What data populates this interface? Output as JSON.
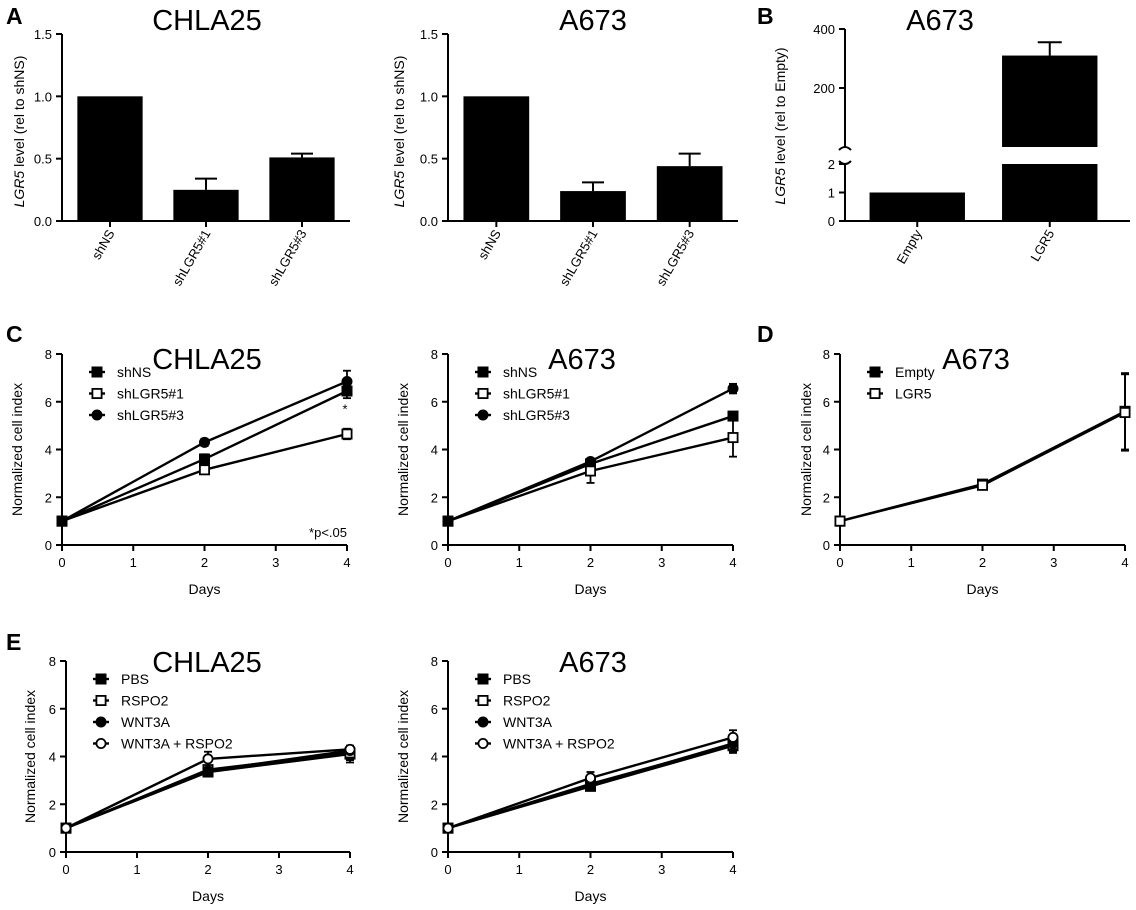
{
  "panel_labels": {
    "A": "A",
    "B": "B",
    "C": "C",
    "D": "D",
    "E": "E"
  },
  "chart_data": [
    {
      "id": "A1",
      "type": "bar",
      "title": "CHLA25",
      "ylabel_gene": "LGR5",
      "ylabel_rest": " level (rel to shNS)",
      "xlabel": "",
      "categories": [
        "shNS",
        "shLGR5#1",
        "shLGR5#3"
      ],
      "values": [
        1.0,
        0.25,
        0.51
      ],
      "errors": [
        0,
        0.09,
        0.03
      ],
      "ylim": [
        0,
        1.5
      ],
      "yticks": [
        "0.0",
        "0.5",
        "1.0",
        "1.5"
      ]
    },
    {
      "id": "A2",
      "type": "bar",
      "title": "A673",
      "ylabel_gene": "LGR5",
      "ylabel_rest": " level (rel  to shNS)",
      "xlabel": "",
      "categories": [
        "shNS",
        "shLGR5#1",
        "shLGR5#3"
      ],
      "values": [
        1.0,
        0.24,
        0.44
      ],
      "errors": [
        0,
        0.07,
        0.1
      ],
      "ylim": [
        0,
        1.5
      ],
      "yticks": [
        "0.0",
        "0.5",
        "1.0",
        "1.5"
      ]
    },
    {
      "id": "B",
      "type": "bar",
      "title": "A673",
      "ylabel_gene": "LGR5",
      "ylabel_rest": " level  (rel to Empty)",
      "xlabel": "",
      "categories": [
        "Empty",
        "LGR5"
      ],
      "values": [
        1.0,
        310
      ],
      "errors": [
        0,
        45
      ],
      "broken_axis": {
        "lower_range": [
          0,
          2
        ],
        "upper_range": [
          0,
          400
        ]
      },
      "yticks_lower": [
        "0",
        "1",
        "2"
      ],
      "yticks_upper": [
        "200",
        "400"
      ]
    },
    {
      "id": "C1",
      "type": "line",
      "title": "CHLA25",
      "xlabel": "Days",
      "ylabel": "Normalized cell index",
      "x": [
        0,
        2,
        4
      ],
      "xlim": [
        0,
        4
      ],
      "ylim": [
        0,
        8
      ],
      "xticks": [
        "0",
        "1",
        "2",
        "3",
        "4"
      ],
      "yticks": [
        "0",
        "2",
        "4",
        "6",
        "8"
      ],
      "annotation": "*p<.05",
      "star": "*",
      "series": [
        {
          "name": "shNS",
          "marker": "square-filled",
          "values": [
            1,
            3.6,
            6.45
          ],
          "errors": [
            0,
            0.2,
            0.3
          ]
        },
        {
          "name": "shLGR5#1",
          "marker": "square-open",
          "values": [
            1,
            3.15,
            4.65
          ],
          "errors": [
            0,
            0.15,
            0.22
          ]
        },
        {
          "name": "shLGR5#3",
          "marker": "circle-filled",
          "values": [
            1,
            4.3,
            6.85
          ],
          "errors": [
            0,
            0.15,
            0.45
          ]
        }
      ]
    },
    {
      "id": "C2",
      "type": "line",
      "title": "A673",
      "xlabel": "Days",
      "ylabel": "Normalized cell index",
      "x": [
        0,
        2,
        4
      ],
      "xlim": [
        0,
        4
      ],
      "ylim": [
        0,
        8
      ],
      "xticks": [
        "0",
        "1",
        "2",
        "3",
        "4"
      ],
      "yticks": [
        "0",
        "2",
        "4",
        "6",
        "8"
      ],
      "series": [
        {
          "name": "shNS",
          "marker": "square-filled",
          "values": [
            1,
            3.4,
            5.4
          ],
          "errors": [
            0,
            0.15,
            0.15
          ]
        },
        {
          "name": "shLGR5#1",
          "marker": "square-open",
          "values": [
            1,
            3.1,
            4.5
          ],
          "errors": [
            0,
            0.5,
            0.8
          ]
        },
        {
          "name": "shLGR5#3",
          "marker": "circle-filled",
          "values": [
            1,
            3.5,
            6.55
          ],
          "errors": [
            0,
            0.1,
            0.2
          ]
        }
      ]
    },
    {
      "id": "D",
      "type": "line",
      "title": "A673",
      "xlabel": "Days",
      "ylabel": "Normalized cell index",
      "x": [
        0,
        2,
        4
      ],
      "xlim": [
        0,
        4
      ],
      "ylim": [
        0,
        8
      ],
      "xticks": [
        "0",
        "1",
        "2",
        "3",
        "4"
      ],
      "yticks": [
        "0",
        "2",
        "4",
        "6",
        "8"
      ],
      "series": [
        {
          "name": "Empty",
          "marker": "square-filled",
          "values": [
            1,
            2.55,
            5.6
          ],
          "errors": [
            0,
            0.1,
            1.6
          ]
        },
        {
          "name": "LGR5",
          "marker": "square-open",
          "values": [
            1,
            2.5,
            5.55
          ],
          "errors": [
            0,
            0.1,
            1.6
          ]
        }
      ]
    },
    {
      "id": "E1",
      "type": "line",
      "title": "CHLA25",
      "xlabel": "Days",
      "ylabel": "Normalized cell index",
      "x": [
        0,
        2,
        4
      ],
      "xlim": [
        0,
        4
      ],
      "ylim": [
        0,
        8
      ],
      "xticks": [
        "0",
        "1",
        "2",
        "3",
        "4"
      ],
      "yticks": [
        "0",
        "2",
        "4",
        "6",
        "8"
      ],
      "series": [
        {
          "name": "PBS",
          "marker": "square-filled",
          "values": [
            1,
            3.35,
            4.1
          ],
          "errors": [
            0,
            0.15,
            0.35
          ]
        },
        {
          "name": "RSPO2",
          "marker": "square-open",
          "values": [
            1,
            3.45,
            4.15
          ],
          "errors": [
            0,
            0.15,
            0.3
          ]
        },
        {
          "name": "WNT3A",
          "marker": "circle-filled",
          "values": [
            1,
            3.4,
            4.25
          ],
          "errors": [
            0,
            0.15,
            0.2
          ]
        },
        {
          "name": "WNT3A + RSPO2",
          "marker": "circle-open",
          "values": [
            1,
            3.9,
            4.3
          ],
          "errors": [
            0,
            0.3,
            0.1
          ]
        }
      ]
    },
    {
      "id": "E2",
      "type": "line",
      "title": "A673",
      "xlabel": "Days",
      "ylabel": "Normalized cell index",
      "x": [
        0,
        2,
        4
      ],
      "xlim": [
        0,
        4
      ],
      "ylim": [
        0,
        8
      ],
      "xticks": [
        "0",
        "1",
        "2",
        "3",
        "4"
      ],
      "yticks": [
        "0",
        "2",
        "4",
        "6",
        "8"
      ],
      "series": [
        {
          "name": "PBS",
          "marker": "square-filled",
          "values": [
            1,
            2.75,
            4.45
          ],
          "errors": [
            0,
            0.15,
            0.3
          ]
        },
        {
          "name": "RSPO2",
          "marker": "square-open",
          "values": [
            1,
            2.85,
            4.5
          ],
          "errors": [
            0,
            0.2,
            0.3
          ]
        },
        {
          "name": "WNT3A",
          "marker": "circle-filled",
          "values": [
            1,
            2.8,
            4.55
          ],
          "errors": [
            0,
            0.15,
            0.25
          ]
        },
        {
          "name": "WNT3A + RSPO2",
          "marker": "circle-open",
          "values": [
            1,
            3.1,
            4.8
          ],
          "errors": [
            0,
            0.25,
            0.3
          ]
        }
      ]
    }
  ]
}
